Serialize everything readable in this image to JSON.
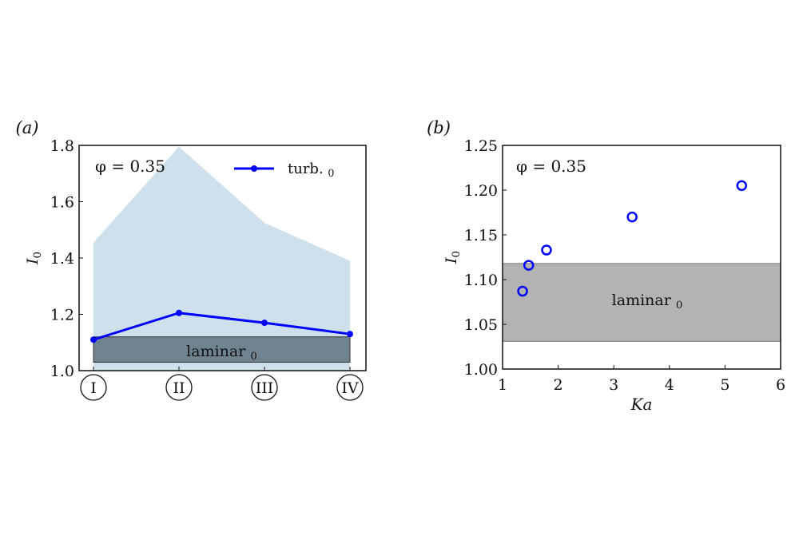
{
  "chart_data": [
    {
      "type": "line",
      "panel_label": "(a)",
      "ylabel": "I0",
      "categories": [
        "I",
        "II",
        "III",
        "IV"
      ],
      "ylim": [
        1.0,
        1.8
      ],
      "yticks": [
        "1.0",
        "1.2",
        "1.4",
        "1.6",
        "1.8"
      ],
      "annotation": "φ = 0.35",
      "series": [
        {
          "name": "turb. I0",
          "values": [
            1.11,
            1.205,
            1.17,
            1.13
          ],
          "color": "#0000ff"
        }
      ],
      "shaded_range": {
        "lower": [
          1.0,
          1.0,
          1.0,
          1.0
        ],
        "upper": [
          1.455,
          1.795,
          1.525,
          1.39
        ],
        "color": "#cde0ec"
      },
      "laminar_band": {
        "label": "laminar I0",
        "lower": 1.03,
        "upper": 1.12,
        "color": "#708390"
      },
      "legend": "top-right"
    },
    {
      "type": "scatter",
      "panel_label": "(b)",
      "xlabel": "Ka",
      "ylabel": "I0",
      "xlim": [
        1,
        6
      ],
      "ylim": [
        1.0,
        1.25
      ],
      "xticks": [
        "1",
        "2",
        "3",
        "4",
        "5",
        "6"
      ],
      "yticks": [
        "1.00",
        "1.05",
        "1.10",
        "1.15",
        "1.20",
        "1.25"
      ],
      "annotation": "φ = 0.35",
      "points": [
        {
          "x": 1.36,
          "y": 1.087
        },
        {
          "x": 1.47,
          "y": 1.116
        },
        {
          "x": 1.79,
          "y": 1.133
        },
        {
          "x": 3.33,
          "y": 1.17
        },
        {
          "x": 5.3,
          "y": 1.205
        }
      ],
      "marker_color": "#0000ff",
      "laminar_band": {
        "label": "laminar I0",
        "lower": 1.031,
        "upper": 1.118,
        "color": "#b3b3b3"
      }
    }
  ]
}
